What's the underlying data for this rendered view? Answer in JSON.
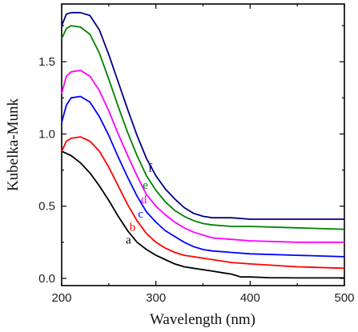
{
  "chart_data": {
    "type": "line",
    "xlabel": "Wavelength (nm)",
    "ylabel": "Kubelka-Munk",
    "xlim": [
      200,
      500
    ],
    "ylim": [
      -0.05,
      1.9
    ],
    "x_ticks": [
      200,
      300,
      400,
      500
    ],
    "y_ticks": [
      0.0,
      0.5,
      1.0,
      1.5
    ],
    "grid": false,
    "series": [
      {
        "name": "a",
        "color": "#000000",
        "label_at": [
          268,
          0.24
        ],
        "points": [
          [
            200,
            0.88
          ],
          [
            210,
            0.85
          ],
          [
            220,
            0.8
          ],
          [
            230,
            0.73
          ],
          [
            240,
            0.64
          ],
          [
            250,
            0.54
          ],
          [
            260,
            0.43
          ],
          [
            270,
            0.33
          ],
          [
            280,
            0.25
          ],
          [
            290,
            0.2
          ],
          [
            300,
            0.16
          ],
          [
            310,
            0.13
          ],
          [
            320,
            0.1
          ],
          [
            330,
            0.08
          ],
          [
            340,
            0.07
          ],
          [
            350,
            0.06
          ],
          [
            360,
            0.05
          ],
          [
            370,
            0.04
          ],
          [
            380,
            0.03
          ],
          [
            390,
            0.01
          ],
          [
            400,
            0.01
          ],
          [
            420,
            0.005
          ],
          [
            450,
            0.003
          ],
          [
            500,
            0.003
          ]
        ]
      },
      {
        "name": "b",
        "color": "#ff0000",
        "label_at": [
          272,
          0.33
        ],
        "points": [
          [
            200,
            0.88
          ],
          [
            205,
            0.95
          ],
          [
            210,
            0.97
          ],
          [
            220,
            0.98
          ],
          [
            230,
            0.95
          ],
          [
            240,
            0.88
          ],
          [
            250,
            0.77
          ],
          [
            260,
            0.64
          ],
          [
            270,
            0.51
          ],
          [
            280,
            0.4
          ],
          [
            290,
            0.31
          ],
          [
            300,
            0.25
          ],
          [
            310,
            0.21
          ],
          [
            320,
            0.18
          ],
          [
            330,
            0.16
          ],
          [
            340,
            0.15
          ],
          [
            350,
            0.14
          ],
          [
            360,
            0.13
          ],
          [
            380,
            0.11
          ],
          [
            400,
            0.1
          ],
          [
            450,
            0.08
          ],
          [
            500,
            0.07
          ]
        ]
      },
      {
        "name": "c",
        "color": "#0000ff",
        "label_at": [
          281,
          0.42
        ],
        "points": [
          [
            200,
            1.08
          ],
          [
            205,
            1.2
          ],
          [
            210,
            1.25
          ],
          [
            220,
            1.26
          ],
          [
            230,
            1.22
          ],
          [
            240,
            1.12
          ],
          [
            250,
            0.99
          ],
          [
            260,
            0.84
          ],
          [
            270,
            0.7
          ],
          [
            280,
            0.57
          ],
          [
            290,
            0.46
          ],
          [
            300,
            0.39
          ],
          [
            310,
            0.33
          ],
          [
            320,
            0.29
          ],
          [
            330,
            0.25
          ],
          [
            340,
            0.22
          ],
          [
            350,
            0.2
          ],
          [
            360,
            0.19
          ],
          [
            380,
            0.18
          ],
          [
            400,
            0.17
          ],
          [
            450,
            0.16
          ],
          [
            500,
            0.15
          ]
        ]
      },
      {
        "name": "d",
        "color": "#ff00ff",
        "label_at": [
          284,
          0.52
        ],
        "points": [
          [
            200,
            1.28
          ],
          [
            205,
            1.4
          ],
          [
            210,
            1.43
          ],
          [
            220,
            1.44
          ],
          [
            230,
            1.4
          ],
          [
            240,
            1.3
          ],
          [
            250,
            1.16
          ],
          [
            260,
            1.0
          ],
          [
            270,
            0.85
          ],
          [
            280,
            0.71
          ],
          [
            290,
            0.58
          ],
          [
            300,
            0.5
          ],
          [
            310,
            0.44
          ],
          [
            320,
            0.39
          ],
          [
            330,
            0.35
          ],
          [
            340,
            0.32
          ],
          [
            350,
            0.3
          ],
          [
            360,
            0.28
          ],
          [
            380,
            0.27
          ],
          [
            400,
            0.26
          ],
          [
            450,
            0.25
          ],
          [
            500,
            0.25
          ]
        ]
      },
      {
        "name": "e",
        "color": "#008000",
        "label_at": [
          286,
          0.62
        ],
        "points": [
          [
            200,
            1.66
          ],
          [
            205,
            1.73
          ],
          [
            210,
            1.75
          ],
          [
            220,
            1.74
          ],
          [
            230,
            1.69
          ],
          [
            240,
            1.56
          ],
          [
            250,
            1.38
          ],
          [
            260,
            1.19
          ],
          [
            270,
            1.01
          ],
          [
            280,
            0.85
          ],
          [
            290,
            0.71
          ],
          [
            300,
            0.61
          ],
          [
            310,
            0.53
          ],
          [
            320,
            0.47
          ],
          [
            330,
            0.43
          ],
          [
            340,
            0.4
          ],
          [
            350,
            0.38
          ],
          [
            360,
            0.37
          ],
          [
            380,
            0.36
          ],
          [
            400,
            0.36
          ],
          [
            450,
            0.35
          ],
          [
            500,
            0.34
          ]
        ]
      },
      {
        "name": "f",
        "color": "#000080",
        "label_at": [
          292,
          0.74
        ],
        "points": [
          [
            200,
            1.75
          ],
          [
            205,
            1.83
          ],
          [
            210,
            1.84
          ],
          [
            220,
            1.84
          ],
          [
            230,
            1.82
          ],
          [
            240,
            1.72
          ],
          [
            250,
            1.55
          ],
          [
            260,
            1.36
          ],
          [
            270,
            1.17
          ],
          [
            280,
            0.99
          ],
          [
            290,
            0.83
          ],
          [
            300,
            0.71
          ],
          [
            310,
            0.62
          ],
          [
            320,
            0.55
          ],
          [
            330,
            0.49
          ],
          [
            340,
            0.45
          ],
          [
            350,
            0.43
          ],
          [
            360,
            0.42
          ],
          [
            380,
            0.42
          ],
          [
            400,
            0.41
          ],
          [
            450,
            0.41
          ],
          [
            500,
            0.41
          ]
        ]
      }
    ]
  }
}
